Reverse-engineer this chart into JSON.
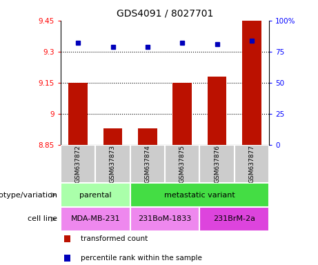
{
  "title": "GDS4091 / 8027701",
  "samples": [
    "GSM637872",
    "GSM637873",
    "GSM637874",
    "GSM637875",
    "GSM637876",
    "GSM637877"
  ],
  "red_values": [
    9.15,
    8.93,
    8.93,
    9.15,
    9.18,
    9.45
  ],
  "blue_values": [
    82,
    79,
    79,
    82,
    81,
    84
  ],
  "ylim_left": [
    8.85,
    9.45
  ],
  "ylim_right": [
    0,
    100
  ],
  "yticks_left": [
    8.85,
    9.0,
    9.15,
    9.3,
    9.45
  ],
  "yticks_right": [
    0,
    25,
    50,
    75,
    100
  ],
  "ytick_labels_left": [
    "8.85",
    "9",
    "9.15",
    "9.3",
    "9.45"
  ],
  "ytick_labels_right": [
    "0",
    "25",
    "50",
    "75",
    "100%"
  ],
  "hlines": [
    9.0,
    9.15,
    9.3
  ],
  "bar_color": "#bb1100",
  "dot_color": "#0000bb",
  "bar_width": 0.55,
  "genotype_groups": [
    {
      "label": "parental",
      "span": [
        0,
        2
      ],
      "color": "#aaffaa"
    },
    {
      "label": "metastatic variant",
      "span": [
        2,
        6
      ],
      "color": "#44dd44"
    }
  ],
  "cell_line_groups": [
    {
      "label": "MDA-MB-231",
      "span": [
        0,
        2
      ],
      "color": "#ee88ee"
    },
    {
      "label": "231BoM-1833",
      "span": [
        2,
        4
      ],
      "color": "#ee88ee"
    },
    {
      "label": "231BrM-2a",
      "span": [
        4,
        6
      ],
      "color": "#dd44dd"
    }
  ],
  "legend_items": [
    {
      "color": "#bb1100",
      "label": "transformed count"
    },
    {
      "color": "#0000bb",
      "label": "percentile rank within the sample"
    }
  ],
  "row_label_genotype": "genotype/variation",
  "row_label_cell": "cell line",
  "sample_bg": "#cccccc"
}
